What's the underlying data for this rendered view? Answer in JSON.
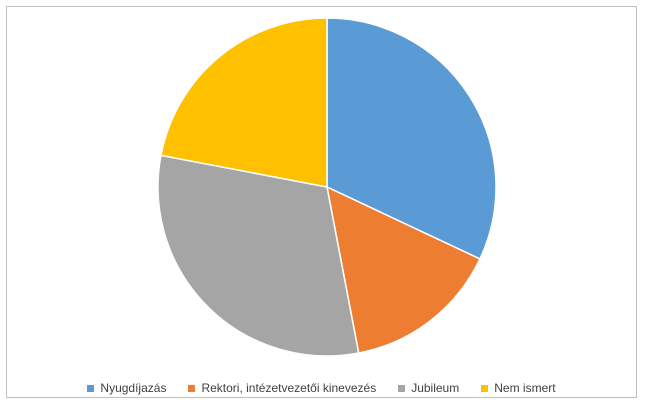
{
  "chart_data": {
    "type": "pie",
    "title": "",
    "categories": [
      "Nyugdíjazás",
      "Rektori, intézetvezetői kinevezés",
      "Jubileum",
      "Nem ismert"
    ],
    "values": [
      32,
      15,
      31,
      22
    ],
    "colors": [
      "#5b9bd5",
      "#ed7d31",
      "#a5a5a5",
      "#ffc000"
    ],
    "start_angle_deg": 0,
    "direction": "clockwise",
    "legend_position": "bottom"
  }
}
